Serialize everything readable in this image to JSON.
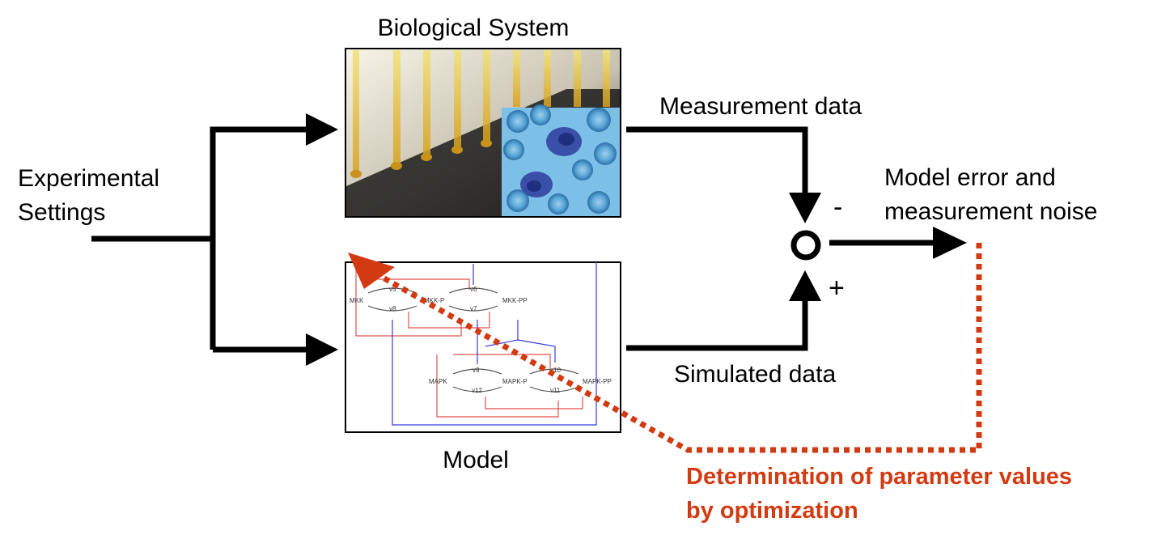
{
  "colors": {
    "ink": "#000000",
    "accent": "#d23a12",
    "model_red": "#e05050",
    "model_blue": "#3a3ae0",
    "cell_bg": "#6fb6e2"
  },
  "labels": {
    "biological_system": "Biological System",
    "experimental_settings_1": "Experimental",
    "experimental_settings_2": "Settings",
    "measurement_data": "Measurement data",
    "simulated_data": "Simulated data",
    "model": "Model",
    "error_1": "Model error and",
    "error_2": "measurement noise",
    "minus": "-",
    "plus": "+",
    "optimization_1": "Determination of parameter values",
    "optimization_2": "by optimization"
  },
  "model_diagram": {
    "species_top": [
      "MKK",
      "MKK-P",
      "MKK-PP"
    ],
    "species_bottom": [
      "MAPK",
      "MAPK-P",
      "MAPK-PP"
    ],
    "reactions_top": [
      "v5",
      "v6",
      "v8",
      "v7"
    ],
    "reactions_bottom": [
      "v9",
      "v10",
      "v12",
      "v11"
    ]
  }
}
